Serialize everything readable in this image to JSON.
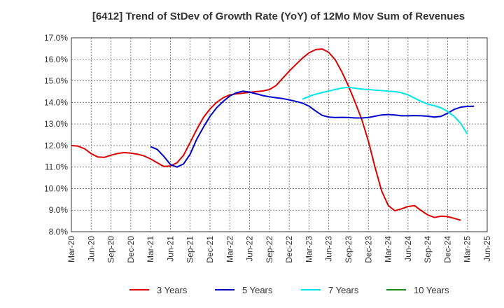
{
  "chart_data": {
    "type": "line",
    "title": "[6412]  Trend of StDev of Growth Rate (YoY) of 12Mo Mov Sum of Revenues",
    "ylim": [
      8.0,
      17.0
    ],
    "yticks": [
      8.0,
      9.0,
      10.0,
      11.0,
      12.0,
      13.0,
      14.0,
      15.0,
      16.0,
      17.0
    ],
    "ytick_labels": [
      "8.0%",
      "9.0%",
      "10.0%",
      "11.0%",
      "12.0%",
      "13.0%",
      "14.0%",
      "15.0%",
      "16.0%",
      "17.0%"
    ],
    "x_labels": [
      "Mar-20",
      "Jun-20",
      "Sep-20",
      "Dec-20",
      "Mar-21",
      "Jun-21",
      "Sep-21",
      "Dec-21",
      "Mar-22",
      "Jun-22",
      "Sep-22",
      "Dec-22",
      "Mar-23",
      "Jun-23",
      "Sep-23",
      "Dec-23",
      "Mar-24",
      "Jun-24",
      "Sep-24",
      "Dec-24",
      "Mar-25",
      "Jun-25"
    ],
    "series": [
      {
        "name": "3 Years",
        "color": "#dd0000",
        "start_index": 0,
        "values": [
          12.0,
          11.97,
          11.85,
          11.62,
          11.47,
          11.45,
          11.55,
          11.63,
          11.67,
          11.65,
          11.6,
          11.52,
          11.38,
          11.2,
          11.03,
          11.05,
          11.2,
          11.55,
          12.15,
          12.75,
          13.3,
          13.7,
          14.0,
          14.22,
          14.35,
          14.4,
          14.43,
          14.47,
          14.5,
          14.53,
          14.6,
          14.78,
          15.12,
          15.45,
          15.76,
          16.05,
          16.3,
          16.45,
          16.48,
          16.32,
          15.97,
          15.4,
          14.75,
          14.0,
          13.2,
          12.2,
          11.0,
          9.9,
          9.22,
          8.97,
          9.06,
          9.17,
          9.21,
          8.98,
          8.78,
          8.66,
          8.72,
          8.7,
          8.62,
          8.53
        ]
      },
      {
        "name": "5 Years",
        "color": "#0000cc",
        "start_index": 12,
        "values": [
          11.95,
          11.82,
          11.5,
          11.12,
          11.0,
          11.15,
          11.6,
          12.3,
          12.85,
          13.35,
          13.75,
          14.05,
          14.3,
          14.45,
          14.52,
          14.48,
          14.4,
          14.32,
          14.26,
          14.22,
          14.18,
          14.12,
          14.05,
          13.97,
          13.83,
          13.6,
          13.4,
          13.32,
          13.3,
          13.31,
          13.3,
          13.28,
          13.28,
          13.3,
          13.36,
          13.42,
          13.44,
          13.42,
          13.38,
          13.38,
          13.39,
          13.38,
          13.36,
          13.32,
          13.35,
          13.5,
          13.68,
          13.78,
          13.82,
          13.82
        ]
      },
      {
        "name": "7 Years",
        "color": "#00e5e5",
        "start_index": 35,
        "values": [
          14.15,
          14.28,
          14.38,
          14.46,
          14.53,
          14.6,
          14.67,
          14.7,
          14.66,
          14.62,
          14.6,
          14.57,
          14.55,
          14.52,
          14.5,
          14.45,
          14.35,
          14.2,
          14.05,
          13.92,
          13.85,
          13.75,
          13.58,
          13.35,
          13.02,
          12.53
        ]
      },
      {
        "name": "10 Years",
        "color": "#1a8c1a",
        "start_index": 0,
        "values": []
      }
    ]
  }
}
